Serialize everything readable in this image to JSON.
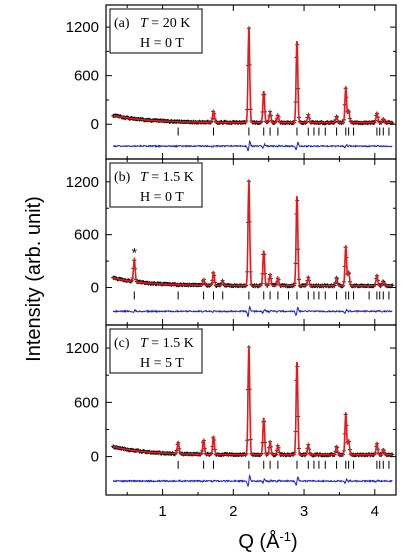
{
  "chart_data": {
    "type": "line",
    "xlabel": "Q (Å⁻¹)",
    "ylabel": "Intensity (arb. unit)",
    "x_ticks": [
      1,
      2,
      3,
      4
    ],
    "y_ticks": [
      0,
      600,
      1200
    ],
    "xlim": [
      0.2,
      4.3
    ],
    "colors": {
      "observed": "#000000",
      "calculated": "#e41a1c",
      "difference": "#1f1fd1",
      "bragg": "#000000"
    },
    "panels": [
      {
        "label_letter": "(a)",
        "T_label": "T = 20 K",
        "H_label": "H = 0 T",
        "ylim": [
          -380,
          1300
        ],
        "magnetic_peak": false,
        "peaks": [
          [
            1.72,
            140
          ],
          [
            2.22,
            1170
          ],
          [
            2.43,
            390
          ],
          [
            2.52,
            130
          ],
          [
            2.63,
            90
          ],
          [
            2.9,
            1010
          ],
          [
            3.06,
            100
          ],
          [
            3.46,
            80
          ],
          [
            3.59,
            430
          ],
          [
            3.63,
            150
          ],
          [
            4.03,
            120
          ],
          [
            4.12,
            50
          ]
        ],
        "bragg_positions": [
          1.22,
          1.72,
          2.22,
          2.43,
          2.52,
          2.63,
          2.9,
          3.06,
          3.14,
          3.21,
          3.3,
          3.46,
          3.59,
          3.63,
          3.7,
          4.03,
          4.07,
          4.12,
          4.2
        ],
        "diff_offset": -270
      },
      {
        "label_letter": "(b)",
        "T_label": "T = 1.5 K",
        "H_label": "H = 0 T",
        "ylim": [
          -380,
          1300
        ],
        "magnetic_peak": true,
        "peaks": [
          [
            0.6,
            250
          ],
          [
            1.58,
            70
          ],
          [
            1.72,
            150
          ],
          [
            1.85,
            50
          ],
          [
            2.22,
            1190
          ],
          [
            2.43,
            400
          ],
          [
            2.52,
            130
          ],
          [
            2.63,
            90
          ],
          [
            2.9,
            1020
          ],
          [
            3.06,
            100
          ],
          [
            3.46,
            90
          ],
          [
            3.59,
            440
          ],
          [
            3.63,
            160
          ],
          [
            4.03,
            120
          ],
          [
            4.12,
            50
          ]
        ],
        "bragg_positions": [
          0.6,
          1.22,
          1.58,
          1.72,
          1.85,
          2.22,
          2.43,
          2.52,
          2.63,
          2.78,
          2.9,
          3.06,
          3.14,
          3.21,
          3.3,
          3.46,
          3.59,
          3.63,
          3.7,
          3.92,
          4.03,
          4.07,
          4.12,
          4.2
        ],
        "diff_offset": -270
      },
      {
        "label_letter": "(c)",
        "T_label": "T = 1.5 K",
        "H_label": "H = 5 T",
        "ylim": [
          -380,
          1300
        ],
        "magnetic_peak": false,
        "peaks": [
          [
            1.22,
            130
          ],
          [
            1.58,
            160
          ],
          [
            1.72,
            200
          ],
          [
            2.22,
            1190
          ],
          [
            2.43,
            410
          ],
          [
            2.52,
            140
          ],
          [
            2.63,
            100
          ],
          [
            2.9,
            1030
          ],
          [
            3.06,
            110
          ],
          [
            3.46,
            100
          ],
          [
            3.59,
            450
          ],
          [
            3.63,
            160
          ],
          [
            4.03,
            130
          ],
          [
            4.12,
            60
          ]
        ],
        "bragg_positions": [
          1.22,
          1.58,
          1.72,
          2.22,
          2.43,
          2.52,
          2.63,
          2.9,
          3.06,
          3.14,
          3.21,
          3.3,
          3.46,
          3.59,
          3.63,
          3.7,
          4.03,
          4.07,
          4.12,
          4.2
        ],
        "diff_offset": -270
      }
    ]
  }
}
